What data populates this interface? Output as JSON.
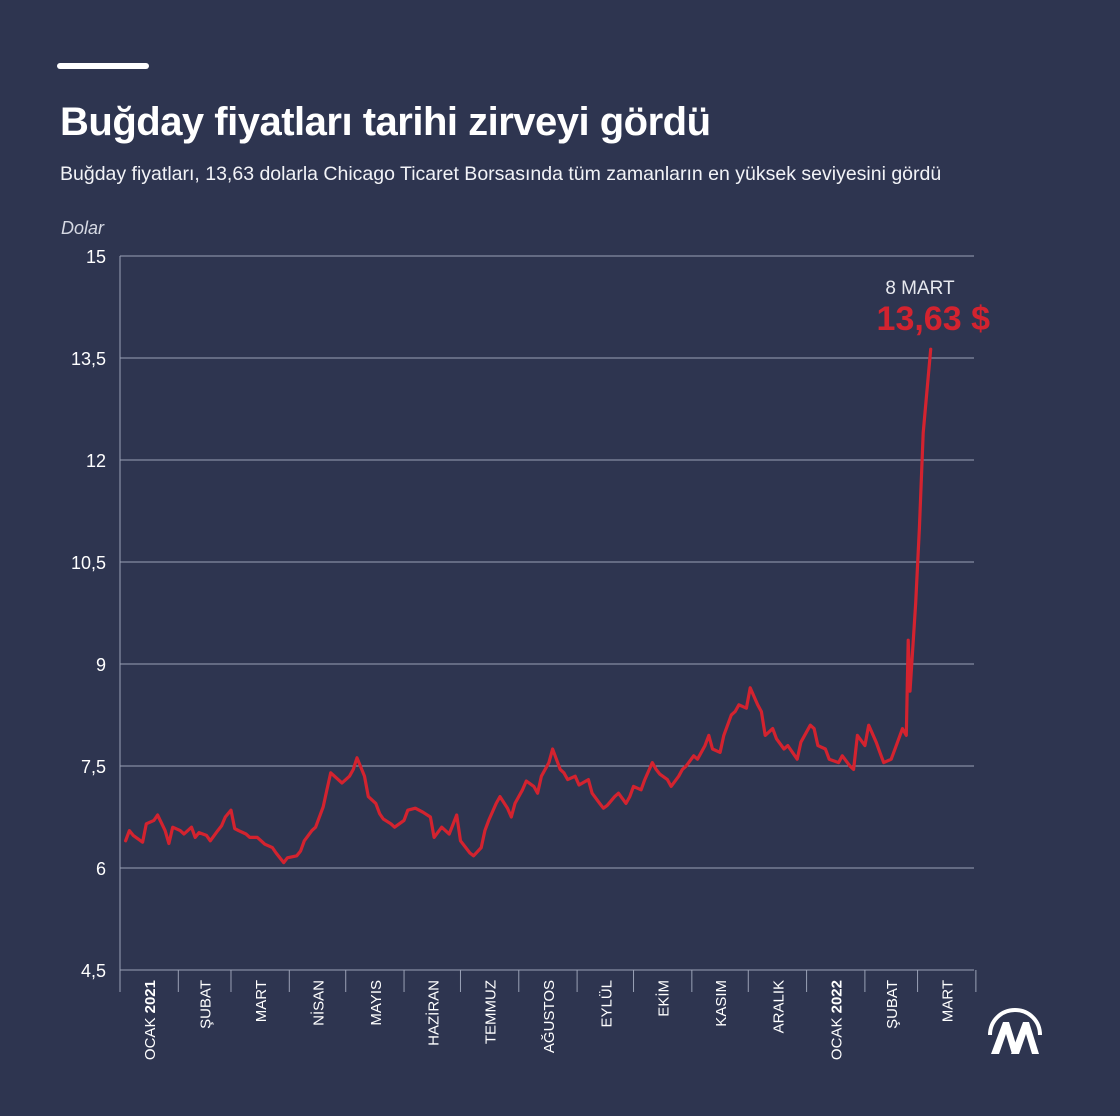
{
  "title": "Buğday fiyatları tarihi zirveyi gördü",
  "subtitle": "Buğday fiyatları, 13,63 dolarla Chicago Ticaret Borsasında tüm zamanların en yüksek seviyesini gördü",
  "colors": {
    "background": "#2e3550",
    "line": "#d3232f",
    "grid": "#9aa1b6",
    "text": "#ffffff"
  },
  "icons": {
    "logo": "aa-logo"
  },
  "chart_data": {
    "type": "line",
    "title": "Buğday fiyatları tarihi zirveyi gördü",
    "ylabel": "Dolar",
    "ylim": [
      4.5,
      15
    ],
    "yticks": [
      {
        "value": 4.5,
        "label": "4,5"
      },
      {
        "value": 6,
        "label": "6"
      },
      {
        "value": 7.5,
        "label": "7,5"
      },
      {
        "value": 9,
        "label": "9"
      },
      {
        "value": 10.5,
        "label": "10,5"
      },
      {
        "value": 12,
        "label": "12"
      },
      {
        "value": 13.5,
        "label": "13,5"
      },
      {
        "value": 15,
        "label": "15"
      }
    ],
    "xlim": [
      "2021-01-01",
      "2022-03-31"
    ],
    "month_labels": [
      {
        "month": "OCAK",
        "year": "2021"
      },
      {
        "month": "ŞUBAT",
        "year": ""
      },
      {
        "month": "MART",
        "year": ""
      },
      {
        "month": "NİSAN",
        "year": ""
      },
      {
        "month": "MAYIS",
        "year": ""
      },
      {
        "month": "HAZİRAN",
        "year": ""
      },
      {
        "month": "TEMMUZ",
        "year": ""
      },
      {
        "month": "AĞUSTOS",
        "year": ""
      },
      {
        "month": "EYLÜL",
        "year": ""
      },
      {
        "month": "EKİM",
        "year": ""
      },
      {
        "month": "KASIM",
        "year": ""
      },
      {
        "month": "ARALIK",
        "year": ""
      },
      {
        "month": "OCAK",
        "year": "2022"
      },
      {
        "month": "ŞUBAT",
        "year": ""
      },
      {
        "month": "MART",
        "year": ""
      }
    ],
    "annotation": {
      "date_label": "8 MART",
      "value_label": "13,63 $",
      "x": "2022-03-08",
      "y": 13.63
    },
    "grid": true,
    "series": [
      {
        "points": [
          [
            "2021-01-04",
            6.4
          ],
          [
            "2021-01-06",
            6.55
          ],
          [
            "2021-01-08",
            6.48
          ],
          [
            "2021-01-11",
            6.42
          ],
          [
            "2021-01-13",
            6.38
          ],
          [
            "2021-01-15",
            6.65
          ],
          [
            "2021-01-19",
            6.7
          ],
          [
            "2021-01-21",
            6.78
          ],
          [
            "2021-01-25",
            6.55
          ],
          [
            "2021-01-27",
            6.36
          ],
          [
            "2021-01-29",
            6.6
          ],
          [
            "2021-02-02",
            6.55
          ],
          [
            "2021-02-04",
            6.5
          ],
          [
            "2021-02-08",
            6.6
          ],
          [
            "2021-02-10",
            6.45
          ],
          [
            "2021-02-12",
            6.52
          ],
          [
            "2021-02-16",
            6.48
          ],
          [
            "2021-02-18",
            6.4
          ],
          [
            "2021-02-22",
            6.55
          ],
          [
            "2021-02-24",
            6.62
          ],
          [
            "2021-02-26",
            6.75
          ],
          [
            "2021-03-01",
            6.85
          ],
          [
            "2021-03-03",
            6.58
          ],
          [
            "2021-03-05",
            6.55
          ],
          [
            "2021-03-09",
            6.5
          ],
          [
            "2021-03-11",
            6.45
          ],
          [
            "2021-03-15",
            6.45
          ],
          [
            "2021-03-17",
            6.4
          ],
          [
            "2021-03-19",
            6.35
          ],
          [
            "2021-03-23",
            6.3
          ],
          [
            "2021-03-25",
            6.22
          ],
          [
            "2021-03-29",
            6.08
          ],
          [
            "2021-03-31",
            6.15
          ],
          [
            "2021-04-05",
            6.18
          ],
          [
            "2021-04-07",
            6.25
          ],
          [
            "2021-04-09",
            6.4
          ],
          [
            "2021-04-13",
            6.55
          ],
          [
            "2021-04-15",
            6.6
          ],
          [
            "2021-04-19",
            6.9
          ],
          [
            "2021-04-21",
            7.15
          ],
          [
            "2021-04-23",
            7.4
          ],
          [
            "2021-04-27",
            7.3
          ],
          [
            "2021-04-29",
            7.25
          ],
          [
            "2021-05-03",
            7.35
          ],
          [
            "2021-05-05",
            7.45
          ],
          [
            "2021-05-07",
            7.62
          ],
          [
            "2021-05-11",
            7.35
          ],
          [
            "2021-05-13",
            7.05
          ],
          [
            "2021-05-17",
            6.95
          ],
          [
            "2021-05-19",
            6.8
          ],
          [
            "2021-05-21",
            6.72
          ],
          [
            "2021-05-25",
            6.65
          ],
          [
            "2021-05-27",
            6.6
          ],
          [
            "2021-06-01",
            6.7
          ],
          [
            "2021-06-03",
            6.85
          ],
          [
            "2021-06-07",
            6.88
          ],
          [
            "2021-06-09",
            6.85
          ],
          [
            "2021-06-11",
            6.82
          ],
          [
            "2021-06-15",
            6.75
          ],
          [
            "2021-06-17",
            6.45
          ],
          [
            "2021-06-21",
            6.6
          ],
          [
            "2021-06-23",
            6.55
          ],
          [
            "2021-06-25",
            6.5
          ],
          [
            "2021-06-29",
            6.78
          ],
          [
            "2021-07-01",
            6.4
          ],
          [
            "2021-07-06",
            6.22
          ],
          [
            "2021-07-08",
            6.18
          ],
          [
            "2021-07-12",
            6.3
          ],
          [
            "2021-07-14",
            6.55
          ],
          [
            "2021-07-16",
            6.7
          ],
          [
            "2021-07-20",
            6.95
          ],
          [
            "2021-07-22",
            7.05
          ],
          [
            "2021-07-26",
            6.88
          ],
          [
            "2021-07-28",
            6.75
          ],
          [
            "2021-07-30",
            6.95
          ],
          [
            "2021-08-03",
            7.15
          ],
          [
            "2021-08-05",
            7.28
          ],
          [
            "2021-08-09",
            7.2
          ],
          [
            "2021-08-11",
            7.1
          ],
          [
            "2021-08-13",
            7.35
          ],
          [
            "2021-08-17",
            7.55
          ],
          [
            "2021-08-19",
            7.75
          ],
          [
            "2021-08-23",
            7.45
          ],
          [
            "2021-08-25",
            7.4
          ],
          [
            "2021-08-27",
            7.3
          ],
          [
            "2021-08-31",
            7.35
          ],
          [
            "2021-09-02",
            7.22
          ],
          [
            "2021-09-07",
            7.3
          ],
          [
            "2021-09-09",
            7.1
          ],
          [
            "2021-09-13",
            6.95
          ],
          [
            "2021-09-15",
            6.88
          ],
          [
            "2021-09-17",
            6.92
          ],
          [
            "2021-09-21",
            7.05
          ],
          [
            "2021-09-23",
            7.1
          ],
          [
            "2021-09-27",
            6.95
          ],
          [
            "2021-09-29",
            7.05
          ],
          [
            "2021-10-01",
            7.2
          ],
          [
            "2021-10-05",
            7.15
          ],
          [
            "2021-10-07",
            7.3
          ],
          [
            "2021-10-11",
            7.55
          ],
          [
            "2021-10-13",
            7.45
          ],
          [
            "2021-10-15",
            7.38
          ],
          [
            "2021-10-19",
            7.3
          ],
          [
            "2021-10-21",
            7.2
          ],
          [
            "2021-10-25",
            7.35
          ],
          [
            "2021-10-27",
            7.45
          ],
          [
            "2021-10-29",
            7.5
          ],
          [
            "2021-11-02",
            7.65
          ],
          [
            "2021-11-04",
            7.6
          ],
          [
            "2021-11-08",
            7.8
          ],
          [
            "2021-11-10",
            7.95
          ],
          [
            "2021-11-12",
            7.75
          ],
          [
            "2021-11-16",
            7.7
          ],
          [
            "2021-11-18",
            7.95
          ],
          [
            "2021-11-22",
            8.25
          ],
          [
            "2021-11-24",
            8.3
          ],
          [
            "2021-11-26",
            8.4
          ],
          [
            "2021-11-30",
            8.35
          ],
          [
            "2021-12-02",
            8.65
          ],
          [
            "2021-12-06",
            8.4
          ],
          [
            "2021-12-08",
            8.3
          ],
          [
            "2021-12-10",
            7.95
          ],
          [
            "2021-12-14",
            8.05
          ],
          [
            "2021-12-16",
            7.9
          ],
          [
            "2021-12-20",
            7.75
          ],
          [
            "2021-12-22",
            7.8
          ],
          [
            "2021-12-27",
            7.6
          ],
          [
            "2021-12-29",
            7.85
          ],
          [
            "2022-01-03",
            8.1
          ],
          [
            "2022-01-05",
            8.05
          ],
          [
            "2022-01-07",
            7.8
          ],
          [
            "2022-01-11",
            7.75
          ],
          [
            "2022-01-13",
            7.6
          ],
          [
            "2022-01-18",
            7.55
          ],
          [
            "2022-01-20",
            7.65
          ],
          [
            "2022-01-24",
            7.5
          ],
          [
            "2022-01-26",
            7.45
          ],
          [
            "2022-01-28",
            7.95
          ],
          [
            "2022-02-01",
            7.8
          ],
          [
            "2022-02-03",
            8.1
          ],
          [
            "2022-02-07",
            7.85
          ],
          [
            "2022-02-09",
            7.7
          ],
          [
            "2022-02-11",
            7.55
          ],
          [
            "2022-02-15",
            7.6
          ],
          [
            "2022-02-17",
            7.75
          ],
          [
            "2022-02-21",
            8.05
          ],
          [
            "2022-02-23",
            7.95
          ],
          [
            "2022-02-24",
            9.35
          ],
          [
            "2022-02-25",
            8.6
          ],
          [
            "2022-02-28",
            9.9
          ],
          [
            "2022-03-02",
            11.0
          ],
          [
            "2022-03-04",
            12.4
          ],
          [
            "2022-03-08",
            13.63
          ]
        ]
      }
    ]
  }
}
